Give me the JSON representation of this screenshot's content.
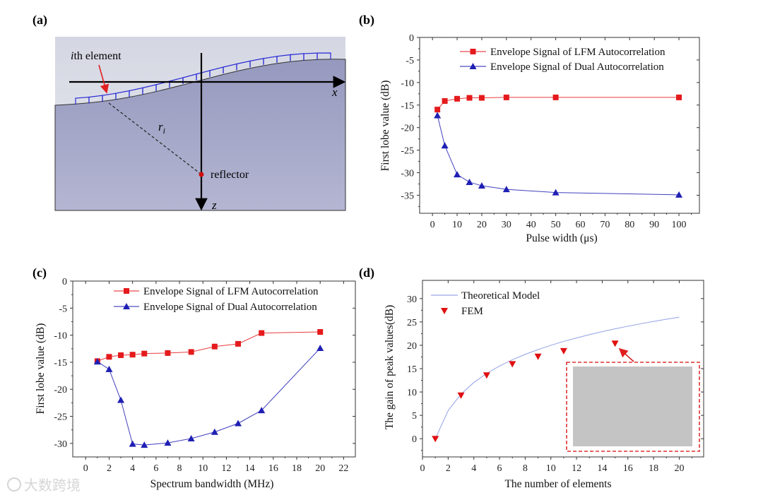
{
  "panel_labels": [
    "(a)",
    "(b)",
    "(c)",
    "(d)"
  ],
  "diagram": {
    "element_label_italic": "i",
    "element_label": "th element",
    "x_axis": "x",
    "z_axis": "z",
    "distance_label": "r",
    "distance_sub": "i",
    "reflector_label": "reflector",
    "colors": {
      "element": "#2b2bd6",
      "arrow": "#e02020",
      "reflector": "#d01010"
    }
  },
  "watermark": "大数跨境",
  "chart_data": [
    {
      "id": "b",
      "type": "line",
      "xlabel": "Pulse width (μs)",
      "ylabel": "First lobe value (dB)",
      "xlim": [
        -5.2,
        108.3
      ],
      "ylim": [
        -39,
        0
      ],
      "xticks": [
        0,
        10,
        20,
        30,
        40,
        50,
        60,
        70,
        80,
        90,
        100
      ],
      "yticks": [
        0,
        -5,
        -10,
        -15,
        -20,
        -25,
        -30,
        -35
      ],
      "legend": "top-right",
      "x": [
        2,
        5,
        10,
        15,
        20,
        30,
        50,
        100
      ],
      "series": [
        {
          "name": "Envelope Signal of LFM Autocorrelation",
          "marker": "square",
          "color": "#e41a1c",
          "values": [
            -16,
            -14.1,
            -13.6,
            -13.4,
            -13.4,
            -13.3,
            -13.3,
            -13.3
          ]
        },
        {
          "name": "Envelope Signal of Dual Autocorrelation",
          "marker": "triangle-up",
          "color": "#1f1fb4",
          "values": [
            -17.3,
            -24,
            -30.4,
            -32.1,
            -32.9,
            -33.7,
            -34.4,
            -34.9
          ]
        }
      ]
    },
    {
      "id": "c",
      "type": "line",
      "xlabel": "Spectrum bandwidth (MHz)",
      "ylabel": "First lobe value (dB)",
      "xlim": [
        -1.1,
        23
      ],
      "ylim": [
        -32.5,
        0
      ],
      "xticks": [
        0,
        2,
        4,
        6,
        8,
        10,
        12,
        14,
        16,
        18,
        20,
        22
      ],
      "yticks": [
        0,
        -5,
        -10,
        -15,
        -20,
        -25,
        -30
      ],
      "legend": "top-right",
      "x": [
        1,
        2,
        3,
        4,
        5,
        7,
        9,
        11,
        13,
        15,
        20
      ],
      "series": [
        {
          "name": "Envelope Signal of LFM Autocorrelation",
          "marker": "square",
          "color": "#e41a1c",
          "values": [
            -14.8,
            -14,
            -13.7,
            -13.6,
            -13.4,
            -13.3,
            -13.1,
            -12.1,
            -11.6,
            -9.6,
            -9.4
          ]
        },
        {
          "name": "Envelope Signal of Dual Autocorrelation",
          "marker": "triangle-up",
          "color": "#1f1fb4",
          "values": [
            -14.9,
            -16.3,
            -22,
            -30.1,
            -30.3,
            -29.9,
            -29.1,
            -27.9,
            -26.3,
            -23.9,
            -12.4
          ]
        }
      ]
    },
    {
      "id": "d",
      "type": "line",
      "xlabel": "The number of elements",
      "ylabel": "The gain of peak values(dB)",
      "xlim": [
        0,
        21.9
      ],
      "ylim": [
        -3.9,
        33.9
      ],
      "xticks": [
        0,
        2,
        4,
        6,
        8,
        10,
        12,
        14,
        16,
        18,
        20
      ],
      "yticks": [
        0,
        5,
        10,
        15,
        20,
        25,
        30
      ],
      "legend": "top-left",
      "series": [
        {
          "name": "Theoretical Model",
          "marker": "none",
          "color": "#8090e0",
          "x": [
            1,
            2,
            3,
            4,
            5,
            6,
            7,
            8,
            9,
            10,
            11,
            12,
            13,
            14,
            15,
            16,
            17,
            18,
            19,
            20
          ],
          "values": [
            0,
            6.02,
            9.54,
            12.04,
            13.98,
            15.56,
            16.9,
            18.06,
            19.08,
            20,
            20.83,
            21.58,
            22.28,
            22.92,
            23.52,
            24.08,
            24.61,
            25.11,
            25.58,
            26.02
          ]
        },
        {
          "name": "FEM",
          "marker": "triangle-down",
          "color": "#e01010",
          "x": [
            1,
            3,
            5,
            7,
            9,
            11,
            15
          ],
          "values": [
            0,
            9.3,
            13.6,
            16,
            17.6,
            18.8,
            20.4
          ]
        }
      ]
    }
  ]
}
